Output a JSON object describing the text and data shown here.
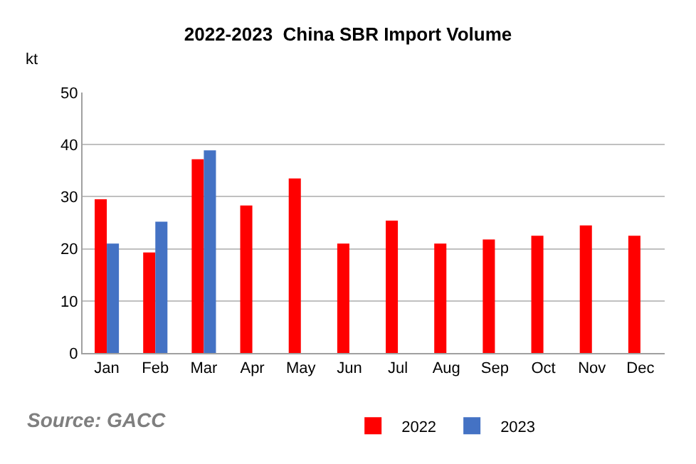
{
  "chart_data": {
    "type": "bar",
    "title": "2022-2023  China SBR Import Volume",
    "ylabel": "kt",
    "categories": [
      "Jan",
      "Feb",
      "Mar",
      "Apr",
      "May",
      "Jun",
      "Jul",
      "Aug",
      "Sep",
      "Oct",
      "Nov",
      "Dec"
    ],
    "series": [
      {
        "name": "2022",
        "color": "#ff0000",
        "values": [
          29.5,
          19.3,
          37.2,
          28.3,
          33.5,
          21.0,
          25.4,
          21.0,
          21.8,
          22.5,
          24.5,
          22.5
        ]
      },
      {
        "name": "2023",
        "color": "#4472c4",
        "values": [
          21.0,
          25.2,
          38.9,
          null,
          null,
          null,
          null,
          null,
          null,
          null,
          null,
          null
        ]
      }
    ],
    "ylim": [
      0,
      50
    ],
    "yticks": [
      0,
      10,
      20,
      30,
      40,
      50
    ],
    "grid": "y",
    "legend": "bottom",
    "annotations": [
      "Source: GACC"
    ]
  }
}
